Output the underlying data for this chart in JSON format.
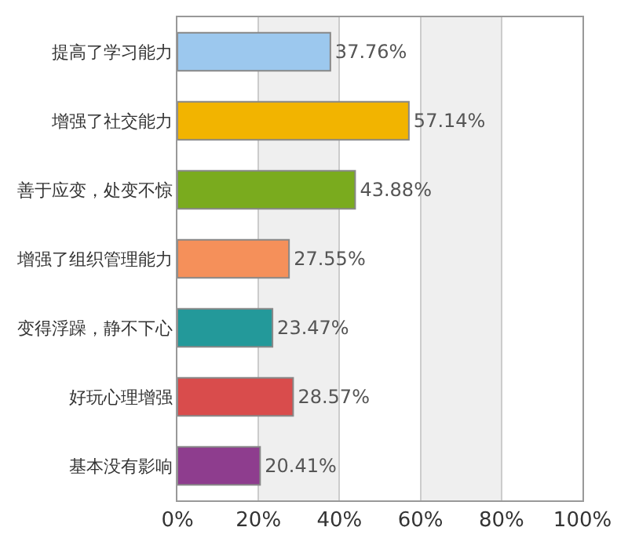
{
  "chart_data": {
    "type": "bar",
    "orientation": "horizontal",
    "categories": [
      "提高了学习能力",
      "增强了社交能力",
      "善于应变，处变不惊",
      "增强了组织管理能力",
      "变得浮躁，静不下心",
      "好玩心理增强",
      "基本没有影响"
    ],
    "values": [
      37.76,
      57.14,
      43.88,
      27.55,
      23.47,
      28.57,
      20.41
    ],
    "colors": [
      "#9cc8ee",
      "#f2b400",
      "#7aab1e",
      "#f5905a",
      "#23999a",
      "#d94c4c",
      "#8e3d8e"
    ],
    "value_labels": [
      "37.76%",
      "57.14%",
      "43.88%",
      "27.55%",
      "23.47%",
      "28.57%",
      "20.41%"
    ],
    "xlim": [
      0,
      100
    ],
    "xticks": [
      {
        "value": 0,
        "label": "0%"
      },
      {
        "value": 20,
        "label": "20%"
      },
      {
        "value": 40,
        "label": "40%"
      },
      {
        "value": 60,
        "label": "60%"
      },
      {
        "value": 80,
        "label": "80%"
      },
      {
        "value": 100,
        "label": "100%"
      }
    ],
    "bands": [
      {
        "axis": "x",
        "from": 20,
        "to": 40,
        "color": "#efefef"
      },
      {
        "axis": "x",
        "from": 60,
        "to": 80,
        "color": "#efefef"
      }
    ],
    "grid": "x",
    "legend": false
  }
}
